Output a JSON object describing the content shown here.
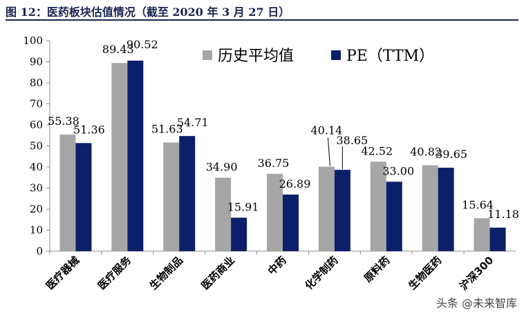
{
  "figure_title": "图 12：医药板块估值情况（截至 2020 年 3 月 27 日）",
  "watermark": "头条 @未来智库",
  "chart_data": {
    "type": "bar",
    "categories": [
      "医疗器械",
      "医疗服务",
      "生物制品",
      "医药商业",
      "中药",
      "化学制药",
      "原料药",
      "生物医药",
      "沪深300"
    ],
    "series": [
      {
        "name": "历史平均值",
        "color": "#a6a6a6",
        "values": [
          55.38,
          89.43,
          51.63,
          34.9,
          36.75,
          40.14,
          42.52,
          40.82,
          15.64
        ]
      },
      {
        "name": "PE（TTM）",
        "color": "#0c1f6b",
        "values": [
          51.36,
          90.52,
          54.71,
          15.91,
          26.89,
          38.65,
          33.0,
          39.65,
          11.18
        ]
      }
    ],
    "data_labels": [
      [
        "55.38",
        "89.43",
        "51.63",
        "34.90",
        "36.75",
        "40.14",
        "42.52",
        "40.82",
        "15.64"
      ],
      [
        "51.36",
        "90.52",
        "54.71",
        "15.91",
        "26.89",
        "38.65",
        "33.00",
        "39.65",
        "11.18"
      ]
    ],
    "yticks": [
      "0",
      "10",
      "20",
      "30",
      "40",
      "50",
      "60",
      "70",
      "80",
      "90",
      "100"
    ],
    "ylim": [
      0,
      100
    ],
    "legend_position": "top-right",
    "grid": false
  }
}
